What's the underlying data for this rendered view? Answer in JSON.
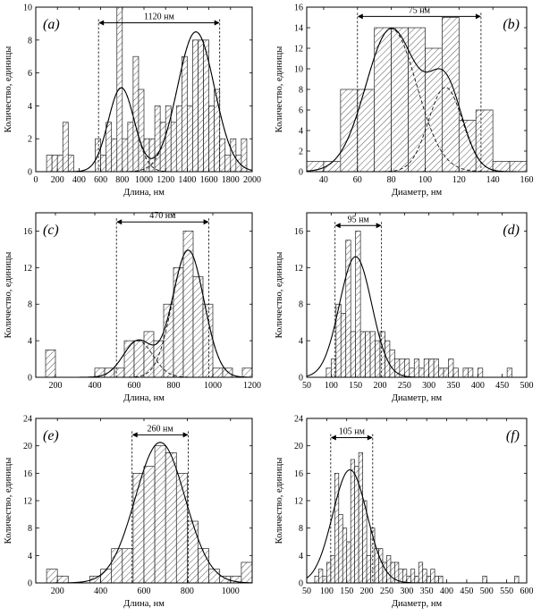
{
  "chart_data": [
    {
      "id": "a",
      "type": "bar",
      "panel_label": "(a)",
      "xlabel": "Длина, нм",
      "ylabel": "Количество, единицы",
      "xlim": [
        0,
        2000
      ],
      "ylim": [
        0,
        10
      ],
      "xticks": [
        0,
        200,
        400,
        600,
        800,
        1000,
        1200,
        1400,
        1600,
        1800,
        2000
      ],
      "yticks": [
        0,
        2,
        4,
        6,
        8,
        10
      ],
      "bin_width": 50,
      "bins": [
        [
          125,
          1
        ],
        [
          175,
          1
        ],
        [
          225,
          1
        ],
        [
          275,
          3
        ],
        [
          325,
          1
        ],
        [
          575,
          2
        ],
        [
          625,
          1
        ],
        [
          675,
          3
        ],
        [
          725,
          2
        ],
        [
          775,
          10
        ],
        [
          825,
          2
        ],
        [
          875,
          3
        ],
        [
          925,
          7
        ],
        [
          975,
          5
        ],
        [
          1025,
          2
        ],
        [
          1075,
          2
        ],
        [
          1125,
          4
        ],
        [
          1175,
          3
        ],
        [
          1225,
          4
        ],
        [
          1275,
          3
        ],
        [
          1325,
          4
        ],
        [
          1375,
          7
        ],
        [
          1425,
          4
        ],
        [
          1475,
          8
        ],
        [
          1525,
          8
        ],
        [
          1575,
          8
        ],
        [
          1625,
          4
        ],
        [
          1675,
          5
        ],
        [
          1725,
          2
        ],
        [
          1775,
          1
        ],
        [
          1825,
          2
        ],
        [
          1875,
          1
        ],
        [
          1925,
          2
        ]
      ],
      "fit_components": [
        {
          "a": 5.1,
          "mu": 790,
          "sigma": 120
        },
        {
          "a": 8.5,
          "mu": 1480,
          "sigma": 170
        }
      ],
      "annotation": {
        "text": "1120 нм",
        "from": 580,
        "to": 1700,
        "y": 9.05
      }
    },
    {
      "id": "b",
      "type": "bar",
      "panel_label": "(b)",
      "xlabel": "Диаметр, нм",
      "ylabel": "Количество, единицы",
      "xlim": [
        30,
        160
      ],
      "ylim": [
        0,
        16
      ],
      "xticks": [
        40,
        60,
        80,
        100,
        120,
        140,
        160
      ],
      "yticks": [
        0,
        2,
        4,
        6,
        8,
        10,
        12,
        14,
        16
      ],
      "bin_width": 10,
      "bins": [
        [
          35,
          1
        ],
        [
          45,
          1
        ],
        [
          55,
          8
        ],
        [
          65,
          8
        ],
        [
          75,
          14
        ],
        [
          85,
          14
        ],
        [
          95,
          14
        ],
        [
          105,
          12
        ],
        [
          115,
          15
        ],
        [
          125,
          5
        ],
        [
          135,
          6
        ],
        [
          145,
          1
        ],
        [
          155,
          1
        ]
      ],
      "fit_components": [
        {
          "a": 13.9,
          "mu": 80,
          "sigma": 15
        },
        {
          "a": 8.2,
          "mu": 112,
          "sigma": 10
        }
      ],
      "annotation": {
        "text": "75 нм",
        "from": 60,
        "to": 133,
        "y": 15.1
      }
    },
    {
      "id": "c",
      "type": "bar",
      "panel_label": "(c)",
      "xlabel": "Длина, нм",
      "ylabel": "Количество, единицы",
      "xlim": [
        100,
        1200
      ],
      "ylim": [
        0,
        18
      ],
      "xticks": [
        200,
        400,
        600,
        800,
        1000,
        1200
      ],
      "yticks": [
        0,
        4,
        8,
        12,
        16
      ],
      "bin_width": 50,
      "bins": [
        [
          175,
          3
        ],
        [
          425,
          1
        ],
        [
          475,
          1
        ],
        [
          525,
          1
        ],
        [
          575,
          4
        ],
        [
          625,
          4
        ],
        [
          675,
          5
        ],
        [
          725,
          4
        ],
        [
          775,
          8
        ],
        [
          825,
          12
        ],
        [
          875,
          16
        ],
        [
          925,
          11
        ],
        [
          975,
          8
        ],
        [
          1025,
          1
        ],
        [
          1075,
          1
        ],
        [
          1175,
          1
        ]
      ],
      "fit_components": [
        {
          "a": 4.0,
          "mu": 620,
          "sigma": 75
        },
        {
          "a": 13.9,
          "mu": 875,
          "sigma": 80
        }
      ],
      "annotation": {
        "text": "470 нм",
        "from": 510,
        "to": 980,
        "y": 17.0
      }
    },
    {
      "id": "d",
      "type": "bar",
      "panel_label": "(d)",
      "xlabel": "Диаметр, нм",
      "ylabel": "Количество, единицы",
      "xlim": [
        50,
        500
      ],
      "ylim": [
        0,
        18
      ],
      "xticks": [
        50,
        100,
        150,
        200,
        250,
        300,
        350,
        400,
        450,
        500
      ],
      "yticks": [
        0,
        4,
        8,
        12,
        16
      ],
      "bin_width": 10,
      "bins": [
        [
          95,
          1
        ],
        [
          105,
          2
        ],
        [
          115,
          8
        ],
        [
          125,
          7
        ],
        [
          135,
          15
        ],
        [
          145,
          5
        ],
        [
          155,
          16
        ],
        [
          165,
          5
        ],
        [
          175,
          5
        ],
        [
          185,
          5
        ],
        [
          195,
          4
        ],
        [
          205,
          5
        ],
        [
          215,
          4
        ],
        [
          225,
          3
        ],
        [
          235,
          2
        ],
        [
          245,
          2
        ],
        [
          255,
          2
        ],
        [
          265,
          1
        ],
        [
          275,
          2
        ],
        [
          285,
          1
        ],
        [
          295,
          2
        ],
        [
          305,
          2
        ],
        [
          315,
          2
        ],
        [
          325,
          1
        ],
        [
          335,
          1
        ],
        [
          345,
          2
        ],
        [
          355,
          1
        ],
        [
          375,
          1
        ],
        [
          385,
          1
        ],
        [
          405,
          1
        ],
        [
          465,
          1
        ]
      ],
      "fit_components": [
        {
          "a": 13.2,
          "mu": 150,
          "sigma": 33
        }
      ],
      "annotation": {
        "text": "95 нм",
        "from": 108,
        "to": 203,
        "y": 16.6
      }
    },
    {
      "id": "e",
      "type": "bar",
      "panel_label": "(e)",
      "xlabel": "Длина, нм",
      "ylabel": "Количество, единицы",
      "xlim": [
        100,
        1100
      ],
      "ylim": [
        0,
        24
      ],
      "xticks": [
        200,
        400,
        600,
        800,
        1000
      ],
      "yticks": [
        0,
        4,
        8,
        12,
        16,
        20,
        24
      ],
      "bin_width": 50,
      "bins": [
        [
          175,
          2
        ],
        [
          225,
          1
        ],
        [
          375,
          1
        ],
        [
          425,
          2
        ],
        [
          475,
          5
        ],
        [
          525,
          5
        ],
        [
          575,
          16
        ],
        [
          625,
          17
        ],
        [
          675,
          20
        ],
        [
          725,
          19
        ],
        [
          775,
          16
        ],
        [
          825,
          9
        ],
        [
          875,
          5
        ],
        [
          925,
          2
        ],
        [
          975,
          1
        ],
        [
          1025,
          1
        ],
        [
          1075,
          3
        ]
      ],
      "fit_components": [
        {
          "a": 20.5,
          "mu": 675,
          "sigma": 115
        }
      ],
      "annotation": {
        "text": "260 нм",
        "from": 545,
        "to": 805,
        "y": 21.6
      }
    },
    {
      "id": "f",
      "type": "bar",
      "panel_label": "(f)",
      "xlabel": "Диаметр, нм",
      "ylabel": "Количество, единицы",
      "xlim": [
        50,
        600
      ],
      "ylim": [
        0,
        24
      ],
      "xticks": [
        50,
        100,
        150,
        200,
        250,
        300,
        350,
        400,
        450,
        500,
        550,
        600
      ],
      "yticks": [
        0,
        4,
        8,
        12,
        16,
        20,
        24
      ],
      "bin_width": 10,
      "bins": [
        [
          75,
          1
        ],
        [
          85,
          2
        ],
        [
          95,
          1
        ],
        [
          105,
          3
        ],
        [
          115,
          4
        ],
        [
          125,
          16
        ],
        [
          135,
          10
        ],
        [
          145,
          8
        ],
        [
          155,
          6
        ],
        [
          165,
          18
        ],
        [
          175,
          17
        ],
        [
          185,
          19
        ],
        [
          195,
          12
        ],
        [
          205,
          4
        ],
        [
          215,
          8
        ],
        [
          225,
          5
        ],
        [
          235,
          5
        ],
        [
          245,
          3
        ],
        [
          255,
          4
        ],
        [
          265,
          3
        ],
        [
          275,
          3
        ],
        [
          285,
          2
        ],
        [
          295,
          2
        ],
        [
          305,
          1
        ],
        [
          315,
          2
        ],
        [
          325,
          1
        ],
        [
          335,
          3
        ],
        [
          345,
          2
        ],
        [
          355,
          1
        ],
        [
          365,
          2
        ],
        [
          375,
          1
        ],
        [
          385,
          1
        ],
        [
          495,
          1
        ],
        [
          575,
          1
        ]
      ],
      "fit_components": [
        {
          "a": 16.5,
          "mu": 158,
          "sigma": 43
        }
      ],
      "annotation": {
        "text": "105 нм",
        "from": 110,
        "to": 215,
        "y": 21.2
      }
    }
  ]
}
